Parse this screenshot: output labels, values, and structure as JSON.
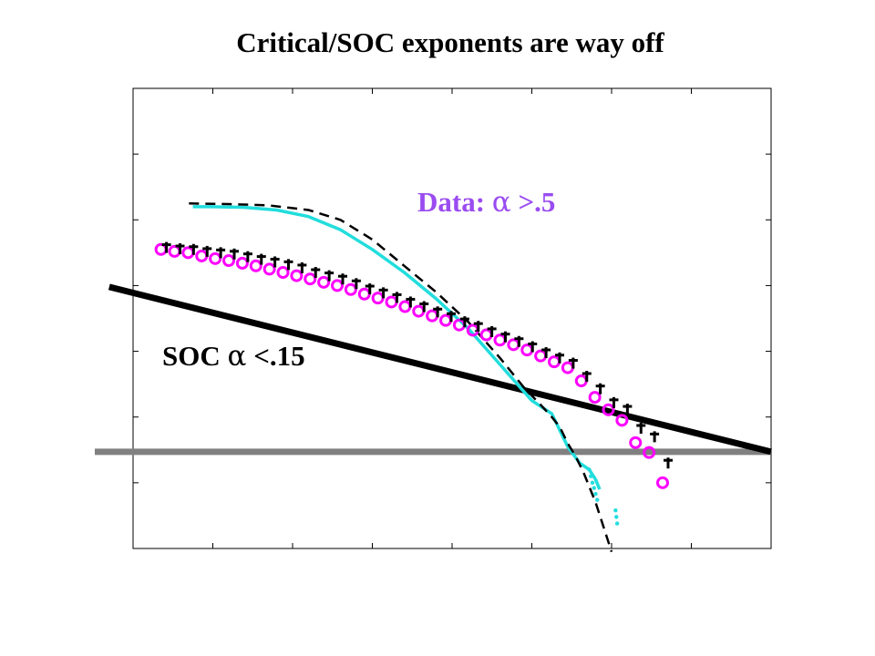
{
  "chart_data": {
    "type": "line",
    "title": "Critical/SOC exponents are way off",
    "xlabel": "",
    "ylabel": "",
    "xlim": [
      0,
      8
    ],
    "ylim": [
      0,
      7
    ],
    "xticks": [
      1,
      2,
      3,
      4,
      5,
      6,
      7
    ],
    "yticks": [
      1,
      2,
      3,
      4,
      5,
      6
    ],
    "xtick_labels_shown": false,
    "ytick_labels_shown": false,
    "grid": false,
    "colors": {
      "axes": "#000000",
      "data_label": "#9a4cf0",
      "cyan_curve": "#22dddd",
      "magenta_markers": "#ff00ff",
      "cross_markers": "#000000",
      "soc_line": "#000000",
      "reference_line": "#808080",
      "fit_curve": "#000000"
    },
    "annotations": {
      "data": {
        "prefix": "Data: ",
        "symbol": "α",
        "suffix": " >.5"
      },
      "soc": {
        "prefix": "SOC ",
        "symbol": "α",
        "suffix": " <.15"
      }
    },
    "series": [
      {
        "marker": "circle",
        "color": "#ff00ff",
        "x": [
          0.35,
          0.52,
          0.69,
          0.86,
          1.03,
          1.2,
          1.37,
          1.54,
          1.71,
          1.88,
          2.05,
          2.22,
          2.39,
          2.56,
          2.73,
          2.9,
          3.07,
          3.24,
          3.41,
          3.58,
          3.75,
          3.92,
          4.09,
          4.26,
          4.43,
          4.6,
          4.77,
          4.94,
          5.11,
          5.28,
          5.45,
          5.62,
          5.79,
          5.96,
          6.13,
          6.3,
          6.47,
          6.64
        ],
        "y": [
          4.55,
          4.52,
          4.5,
          4.45,
          4.41,
          4.38,
          4.34,
          4.3,
          4.25,
          4.2,
          4.15,
          4.1,
          4.05,
          4.0,
          3.94,
          3.87,
          3.81,
          3.75,
          3.68,
          3.61,
          3.54,
          3.47,
          3.4,
          3.32,
          3.25,
          3.17,
          3.1,
          3.02,
          2.93,
          2.84,
          2.75,
          2.55,
          2.3,
          2.11,
          1.95,
          1.61,
          1.46,
          1.0
        ]
      },
      {
        "marker": "cross",
        "color": "#000000",
        "x": [
          0.35,
          0.52,
          0.69,
          0.86,
          1.03,
          1.2,
          1.37,
          1.54,
          1.71,
          1.88,
          2.05,
          2.22,
          2.39,
          2.56,
          2.73,
          2.9,
          3.07,
          3.24,
          3.41,
          3.58,
          3.75,
          3.92,
          4.09,
          4.26,
          4.43,
          4.6,
          4.77,
          4.94,
          5.11,
          5.28,
          5.45,
          5.62,
          5.79,
          5.96,
          6.13,
          6.3,
          6.47,
          6.64
        ],
        "y": [
          4.58,
          4.56,
          4.55,
          4.52,
          4.5,
          4.48,
          4.44,
          4.4,
          4.36,
          4.32,
          4.27,
          4.2,
          4.15,
          4.1,
          4.03,
          3.95,
          3.89,
          3.82,
          3.75,
          3.68,
          3.6,
          3.53,
          3.45,
          3.38,
          3.3,
          3.22,
          3.15,
          3.07,
          2.98,
          2.9,
          2.82,
          2.62,
          2.43,
          2.22,
          2.12,
          1.83,
          1.7,
          1.3
        ]
      },
      {
        "marker": "line",
        "style": "solid",
        "color": "#22dddd",
        "x": [
          0.75,
          1.0,
          1.4,
          1.8,
          2.2,
          2.6,
          3.0,
          3.4,
          3.8,
          4.2,
          4.6,
          5.0,
          5.25,
          5.45,
          5.6,
          5.72,
          5.8,
          5.85
        ],
        "y": [
          5.2,
          5.2,
          5.19,
          5.15,
          5.05,
          4.85,
          4.55,
          4.2,
          3.8,
          3.35,
          2.8,
          2.25,
          2.05,
          1.55,
          1.3,
          1.2,
          1.05,
          0.9
        ]
      },
      {
        "marker": "dot",
        "color": "#22dddd",
        "x": [
          5.72,
          5.74,
          5.76,
          5.78,
          5.8,
          5.82,
          6.05,
          6.06,
          6.07
        ],
        "y": [
          1.2,
          1.1,
          1.0,
          0.92,
          0.83,
          0.74,
          0.58,
          0.48,
          0.38
        ]
      },
      {
        "marker": "line",
        "style": "dashed",
        "color": "#000000",
        "x": [
          0.7,
          1.2,
          1.7,
          2.2,
          2.6,
          3.0,
          3.4,
          3.8,
          4.2,
          4.6,
          4.9,
          5.1,
          5.25,
          5.35,
          5.45,
          5.55,
          5.65,
          5.8,
          6.0
        ],
        "y": [
          5.25,
          5.24,
          5.22,
          5.15,
          5.0,
          4.7,
          4.3,
          3.9,
          3.45,
          2.9,
          2.45,
          2.2,
          2.0,
          1.85,
          1.6,
          1.4,
          1.15,
          0.7,
          -0.05
        ]
      },
      {
        "marker": "line",
        "style": "solid-thick",
        "color": "#000000",
        "x": [
          -0.3,
          8.0
        ],
        "y": [
          3.98,
          1.47
        ]
      },
      {
        "marker": "line",
        "style": "solid-thick",
        "color": "#808080",
        "x": [
          -0.48,
          8.0
        ],
        "y": [
          1.47,
          1.47
        ]
      }
    ]
  }
}
